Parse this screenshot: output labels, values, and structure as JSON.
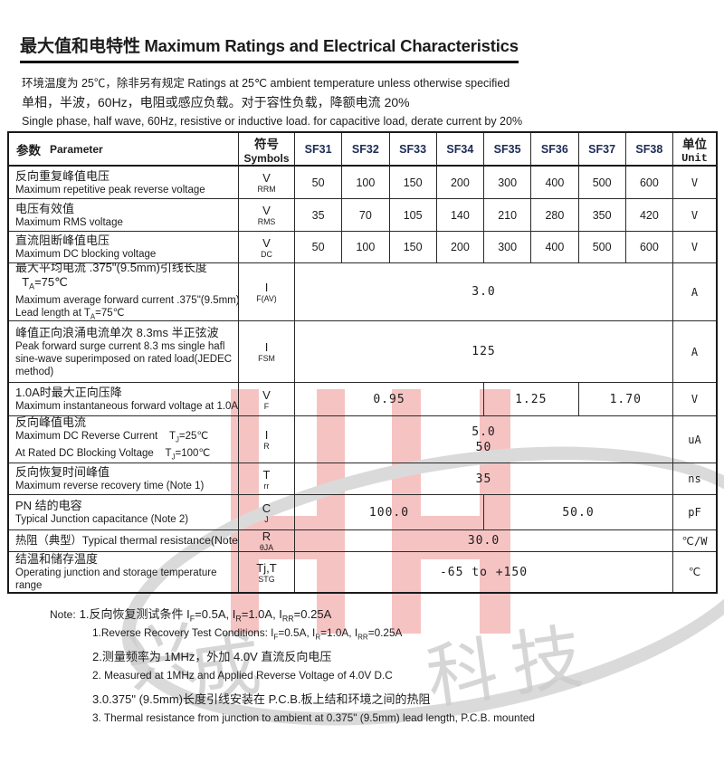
{
  "title": {
    "cn": "最大值和电特性",
    "en": "Maximum Ratings and Electrical Characteristics"
  },
  "subtitle": {
    "line1": "环境温度为 25℃，除非另有规定 Ratings at 25℃ ambient temperature unless otherwise specified",
    "line2": "单相，半波，60Hz，电阻或感应负载。对于容性负载，降额电流 20%",
    "line3": "Single phase, half wave, 60Hz, resistive or inductive load. for capacitive load, derate current by 20%"
  },
  "table": {
    "header": {
      "param_cn": "参数",
      "param_en": "Parameter",
      "symbol_cn": "符号",
      "symbol_en": "Symbols",
      "models": [
        "SF31",
        "SF32",
        "SF33",
        "SF34",
        "SF35",
        "SF36",
        "SF37",
        "SF38"
      ],
      "unit_cn": "单位",
      "unit_en": "Unit"
    },
    "rows": [
      {
        "lines": [
          {
            "t": "反向重复峰值电压",
            "lang": "cn"
          },
          {
            "t": "Maximum repetitive peak reverse voltage",
            "lang": "en"
          }
        ],
        "symbol": "V~RRM~",
        "values": [
          "50",
          "100",
          "150",
          "200",
          "300",
          "400",
          "500",
          "600"
        ],
        "unit": "V"
      },
      {
        "lines": [
          {
            "t": "电压有效值",
            "lang": "cn"
          },
          {
            "t": "Maximum RMS voltage",
            "lang": "en"
          }
        ],
        "symbol": "V~RMS~",
        "values": [
          "35",
          "70",
          "105",
          "140",
          "210",
          "280",
          "350",
          "420"
        ],
        "unit": "V"
      },
      {
        "lines": [
          {
            "t": "直流阻断峰值电压",
            "lang": "cn"
          },
          {
            "t": "Maximum DC blocking voltage",
            "lang": "en"
          }
        ],
        "symbol": "V~DC~",
        "values": [
          "50",
          "100",
          "150",
          "200",
          "300",
          "400",
          "500",
          "600"
        ],
        "unit": "V"
      },
      {
        "lines": [
          {
            "t": "最大平均电流 .375\"(9.5mm)引线长度",
            "lang": "cn"
          },
          {
            "t": "  T~A~=75℃",
            "lang": "cn"
          },
          {
            "t": "Maximum average forward current .375\"(9.5mm)",
            "lang": "en"
          },
          {
            "t": "Lead length at T~A~=75℃",
            "lang": "en"
          }
        ],
        "symbol": "I~F(AV)~",
        "spans": [
          {
            "t": "3.0",
            "n": 8
          }
        ],
        "unit": "A"
      },
      {
        "lines": [
          {
            "t": "峰值正向浪涌电流单次 8.3ms 半正弦波",
            "lang": "cn"
          },
          {
            "t": "Peak forward surge current 8.3 ms single hafl",
            "lang": "en"
          },
          {
            "t": "sine-wave superimposed on rated load(JEDEC",
            "lang": "en"
          },
          {
            "t": "method)",
            "lang": "en"
          }
        ],
        "symbol": "I~FSM~",
        "spans": [
          {
            "t": "125",
            "n": 8
          }
        ],
        "unit": "A"
      },
      {
        "lines": [
          {
            "t": "1.0A时最大正向压降",
            "lang": "cn"
          },
          {
            "t": "Maximum instantaneous forward voltage at 1.0A",
            "lang": "en"
          }
        ],
        "symbol": "V~F~",
        "spans": [
          {
            "t": "0.95",
            "n": 4
          },
          {
            "t": "1.25",
            "n": 2
          },
          {
            "t": "1.70",
            "n": 2
          }
        ],
        "unit": "V"
      },
      {
        "lines": [
          {
            "t": "反向峰值电流",
            "lang": "cn"
          },
          {
            "t": "Maximum DC Reverse Current    T~J~=25℃",
            "lang": "en"
          },
          {
            "t": "At Rated DC Blocking Voltage    T~J~=100℃",
            "lang": "en"
          }
        ],
        "symbol": "I~R~",
        "spans": [
          {
            "t": "5.0\n50",
            "n": 8
          }
        ],
        "unit": "uA"
      },
      {
        "lines": [
          {
            "t": "反向恢复时间峰值",
            "lang": "cn"
          },
          {
            "t": "Maximum reverse recovery time (Note 1)",
            "lang": "en"
          }
        ],
        "symbol": "T~rr~",
        "spans": [
          {
            "t": "35",
            "n": 8
          }
        ],
        "unit": "ns"
      },
      {
        "lines": [
          {
            "t": "PN 结的电容",
            "lang": "cn"
          },
          {
            "t": "Typical Junction capacitance (Note 2)",
            "lang": "en"
          }
        ],
        "symbol": "C~J~",
        "spans": [
          {
            "t": "100.0",
            "n": 4
          },
          {
            "t": "50.0",
            "n": 4
          }
        ],
        "unit": "pF"
      },
      {
        "lines": [
          {
            "t": "热阻（典型）Typical thermal resistance(Note3)",
            "lang": "mix"
          }
        ],
        "symbol": "R~θJA~",
        "spans": [
          {
            "t": "30.0",
            "n": 8
          }
        ],
        "unit": "℃/W"
      },
      {
        "lines": [
          {
            "t": "结温和储存温度",
            "lang": "cn"
          },
          {
            "t": "Operating junction and storage temperature",
            "lang": "en"
          },
          {
            "t": "range",
            "lang": "en"
          }
        ],
        "symbol": "Tj,T~STG~",
        "spans": [
          {
            "t": "-65 to +150",
            "n": 8
          }
        ],
        "unit": "℃"
      }
    ]
  },
  "notes": {
    "label": "Note:",
    "lines": [
      {
        "text": "1.反向恢复测试条件 I~F~=0.5A, I~R~=1.0A, I~RR~=0.25A",
        "lang": "cn",
        "first": true
      },
      {
        "text": "1.Reverse Recovery Test Conditions: I~F~=0.5A, I~R~=1.0A, I~RR~=0.25A",
        "lang": "en"
      },
      {
        "text": "2.测量频率为 1MHz，外加 4.0V 直流反向电压",
        "lang": "cn"
      },
      {
        "text": "2. Measured at 1MHz and Applied Reverse Voltage of 4.0V D.C",
        "lang": "en"
      },
      {
        "text": "3.0.375\" (9.5mm)长度引线安装在 P.C.B.板上结和环境之间的热阻",
        "lang": "cn"
      },
      {
        "text": "3. Thermal resistance from junction to ambient at 0.375\" (9.5mm) lead length, P.C.B. mounted",
        "lang": "en"
      }
    ]
  },
  "watermark": {
    "letters": "HH",
    "chars": [
      "兴",
      "成",
      "科",
      "技"
    ],
    "pink": "#f6c3c3",
    "gray": "#dadada"
  }
}
